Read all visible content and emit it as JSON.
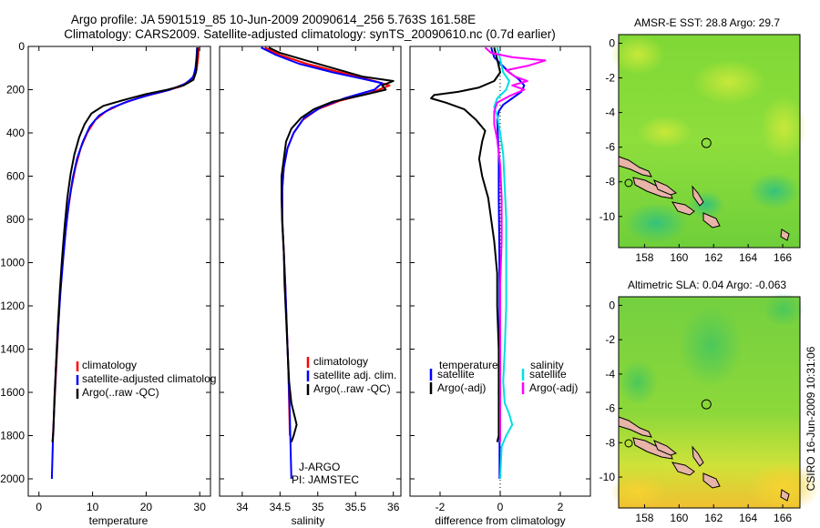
{
  "title": {
    "line1": "Argo profile: JA 5901519_85 10-Jun-2009 20090614_256 5.763S 161.58E",
    "line2": "Climatology: CARS2009. Satellite-adjusted climatology: synTS_20090610.nc (0.7d earlier)"
  },
  "side_text": "CSIRO 16-Jun-2009 10:31:06",
  "colors": {
    "climatology": "#ff0000",
    "satellite": "#0000ff",
    "argo": "#000000",
    "salinity_sat": "#00e0e0",
    "salinity_argo": "#ff00ff",
    "map_land": "#e8b4a8",
    "marker": "#000000"
  },
  "chart_data": [
    {
      "id": "temperature-profile",
      "type": "line",
      "xlabel": "temperature",
      "ylabel": "",
      "xlim": [
        -2,
        32
      ],
      "ylim": [
        2080,
        0
      ],
      "y_reversed": true,
      "xticks": [
        0,
        10,
        20,
        30
      ],
      "yticks": [
        0,
        200,
        400,
        600,
        800,
        1000,
        1200,
        1400,
        1600,
        1800,
        2000
      ],
      "legend_labels": [
        "climatology",
        "satellite-adjusted climatolog",
        "Argo(..raw -QC)"
      ],
      "legend_position": "lower-right",
      "series": [
        {
          "name": "climatology",
          "color": "#ff0000",
          "points": [
            [
              29.8,
              5
            ],
            [
              29.7,
              50
            ],
            [
              29.4,
              110
            ],
            [
              28.5,
              150
            ],
            [
              26.5,
              185
            ],
            [
              23,
              210
            ],
            [
              19,
              235
            ],
            [
              15.5,
              265
            ],
            [
              12.5,
              300
            ],
            [
              10.5,
              340
            ],
            [
              9,
              400
            ],
            [
              7.8,
              470
            ],
            [
              6.8,
              560
            ],
            [
              6,
              660
            ],
            [
              5.3,
              780
            ],
            [
              4.7,
              920
            ],
            [
              4.2,
              1060
            ],
            [
              3.8,
              1200
            ],
            [
              3.5,
              1350
            ],
            [
              3.2,
              1500
            ],
            [
              2.9,
              1650
            ],
            [
              2.6,
              1800
            ]
          ]
        },
        {
          "name": "satellite-adjusted climatolog",
          "color": "#0000ff",
          "points": [
            [
              29.5,
              5
            ],
            [
              29.4,
              50
            ],
            [
              29.2,
              100
            ],
            [
              28.8,
              140
            ],
            [
              27.5,
              170
            ],
            [
              24.5,
              200
            ],
            [
              20.5,
              225
            ],
            [
              16.5,
              255
            ],
            [
              13.5,
              285
            ],
            [
              11.2,
              320
            ],
            [
              9.5,
              370
            ],
            [
              8.2,
              440
            ],
            [
              7.1,
              520
            ],
            [
              6.3,
              610
            ],
            [
              5.6,
              720
            ],
            [
              5,
              850
            ],
            [
              4.5,
              990
            ],
            [
              4,
              1140
            ],
            [
              3.6,
              1300
            ],
            [
              3.2,
              1470
            ],
            [
              2.9,
              1640
            ],
            [
              2.6,
              1820
            ],
            [
              2.4,
              2000
            ]
          ]
        },
        {
          "name": "Argo(..raw -QC)",
          "color": "#000000",
          "points": [
            [
              29.6,
              5
            ],
            [
              29.5,
              50
            ],
            [
              29.3,
              120
            ],
            [
              28.8,
              155
            ],
            [
              27,
              180
            ],
            [
              24,
              200
            ],
            [
              20,
              220
            ],
            [
              15.5,
              250
            ],
            [
              12,
              275
            ],
            [
              9.8,
              310
            ],
            [
              8.5,
              360
            ],
            [
              7.5,
              420
            ],
            [
              6.6,
              500
            ],
            [
              5.9,
              590
            ],
            [
              5.3,
              700
            ],
            [
              4.8,
              830
            ],
            [
              4.3,
              980
            ],
            [
              3.9,
              1130
            ],
            [
              3.5,
              1300
            ],
            [
              3.2,
              1460
            ],
            [
              2.9,
              1620
            ],
            [
              2.7,
              1780
            ],
            [
              2.5,
              1830
            ]
          ]
        }
      ]
    },
    {
      "id": "salinity-profile",
      "type": "line",
      "xlabel": "salinity",
      "ylabel": "",
      "xlim": [
        33.7,
        36.1
      ],
      "ylim": [
        2080,
        0
      ],
      "y_reversed": true,
      "xticks": [
        34,
        34.5,
        35,
        35.5,
        36
      ],
      "legend_labels": [
        "climatology",
        "satellite adj. clim.",
        "Argo(..raw -QC)"
      ],
      "legend_position": "lower-right",
      "annotations": [
        "J-ARGO",
        "PI: JAMSTEC"
      ],
      "series": [
        {
          "name": "climatology",
          "color": "#ff0000",
          "points": [
            [
              34.3,
              5
            ],
            [
              34.5,
              40
            ],
            [
              34.85,
              80
            ],
            [
              35.3,
              120
            ],
            [
              35.75,
              160
            ],
            [
              35.95,
              180
            ],
            [
              35.7,
              215
            ],
            [
              35.3,
              250
            ],
            [
              35,
              290
            ],
            [
              34.8,
              340
            ],
            [
              34.68,
              400
            ],
            [
              34.6,
              470
            ],
            [
              34.55,
              560
            ],
            [
              34.53,
              660
            ],
            [
              34.53,
              800
            ],
            [
              34.55,
              950
            ],
            [
              34.57,
              1100
            ],
            [
              34.59,
              1300
            ],
            [
              34.61,
              1500
            ],
            [
              34.62,
              1650
            ],
            [
              34.63,
              1800
            ]
          ]
        },
        {
          "name": "satellite adj. clim.",
          "color": "#0000ff",
          "points": [
            [
              34.25,
              5
            ],
            [
              34.45,
              40
            ],
            [
              34.75,
              80
            ],
            [
              35.2,
              120
            ],
            [
              35.6,
              150
            ],
            [
              35.85,
              170
            ],
            [
              35.75,
              200
            ],
            [
              35.35,
              240
            ],
            [
              35.05,
              280
            ],
            [
              34.82,
              330
            ],
            [
              34.68,
              400
            ],
            [
              34.6,
              470
            ],
            [
              34.55,
              560
            ],
            [
              34.53,
              660
            ],
            [
              34.53,
              800
            ],
            [
              34.55,
              950
            ],
            [
              34.57,
              1100
            ],
            [
              34.59,
              1300
            ],
            [
              34.61,
              1500
            ],
            [
              34.63,
              1700
            ],
            [
              34.64,
              1850
            ],
            [
              34.65,
              2000
            ]
          ]
        },
        {
          "name": "Argo(..raw -QC)",
          "color": "#000000",
          "points": [
            [
              34.35,
              5
            ],
            [
              34.5,
              30
            ],
            [
              34.8,
              60
            ],
            [
              35.2,
              100
            ],
            [
              35.6,
              140
            ],
            [
              36,
              160
            ],
            [
              35.85,
              180
            ],
            [
              35.9,
              200
            ],
            [
              35.6,
              225
            ],
            [
              35.2,
              255
            ],
            [
              34.95,
              290
            ],
            [
              34.78,
              330
            ],
            [
              34.65,
              380
            ],
            [
              34.58,
              440
            ],
            [
              34.55,
              520
            ],
            [
              34.52,
              600
            ],
            [
              34.52,
              700
            ],
            [
              34.53,
              820
            ],
            [
              34.55,
              950
            ],
            [
              34.56,
              1100
            ],
            [
              34.58,
              1250
            ],
            [
              34.6,
              1400
            ],
            [
              34.62,
              1550
            ],
            [
              34.65,
              1650
            ],
            [
              34.7,
              1720
            ],
            [
              34.72,
              1750
            ],
            [
              34.68,
              1800
            ],
            [
              34.65,
              1830
            ]
          ]
        }
      ]
    },
    {
      "id": "difference-profile",
      "type": "line",
      "xlabel": "difference from climatology",
      "ylabel": "",
      "xlim": [
        -3,
        3
      ],
      "ylim": [
        2080,
        0
      ],
      "y_reversed": true,
      "xticks": [
        -2,
        0,
        2
      ],
      "legend_headers": [
        "temperature",
        "salinity"
      ],
      "legend_labels": [
        "satellite",
        "Argo(-adj)",
        "satellite",
        "Argo(-adj)"
      ],
      "legend_position": "lower-center",
      "series": [
        {
          "name": "satellite",
          "group": "temperature",
          "color": "#0000ff",
          "points": [
            [
              -0.3,
              5
            ],
            [
              -0.2,
              50
            ],
            [
              0.3,
              120
            ],
            [
              0.6,
              150
            ],
            [
              0.8,
              180
            ],
            [
              0.7,
              210
            ],
            [
              0.4,
              240
            ],
            [
              0.1,
              270
            ],
            [
              -0.05,
              300
            ],
            [
              -0.1,
              340
            ],
            [
              -0.08,
              400
            ],
            [
              -0.05,
              500
            ],
            [
              -0.05,
              700
            ],
            [
              -0.03,
              900
            ],
            [
              -0.02,
              1100
            ],
            [
              -0.02,
              1300
            ],
            [
              -0.03,
              1500
            ],
            [
              -0.05,
              1600
            ],
            [
              -0.03,
              1700
            ],
            [
              -0.02,
              1800
            ],
            [
              -0.02,
              2000
            ]
          ]
        },
        {
          "name": "Argo(-adj)",
          "group": "temperature",
          "color": "#000000",
          "points": [
            [
              -0.2,
              5
            ],
            [
              -0.1,
              60
            ],
            [
              0,
              120
            ],
            [
              -0.2,
              160
            ],
            [
              -0.7,
              190
            ],
            [
              -1.4,
              210
            ],
            [
              -2.2,
              225
            ],
            [
              -2.3,
              240
            ],
            [
              -1.8,
              260
            ],
            [
              -1.2,
              290
            ],
            [
              -0.8,
              340
            ],
            [
              -0.5,
              390
            ],
            [
              -0.6,
              440
            ],
            [
              -0.7,
              520
            ],
            [
              -0.6,
              600
            ],
            [
              -0.4,
              700
            ],
            [
              -0.3,
              800
            ],
            [
              -0.2,
              900
            ],
            [
              -0.1,
              1050
            ],
            [
              -0.1,
              1200
            ],
            [
              -0.05,
              1400
            ],
            [
              -0.05,
              1600
            ],
            [
              -0.05,
              1800
            ],
            [
              -0.1,
              1830
            ]
          ]
        },
        {
          "name": "satellite",
          "group": "salinity",
          "color": "#00e0e0",
          "points": [
            [
              -0.1,
              5
            ],
            [
              0,
              60
            ],
            [
              0.1,
              120
            ],
            [
              0.3,
              160
            ],
            [
              0.2,
              200
            ],
            [
              -0.1,
              240
            ],
            [
              -0.2,
              280
            ],
            [
              -0.1,
              320
            ],
            [
              0,
              400
            ],
            [
              0.1,
              500
            ],
            [
              0.15,
              650
            ],
            [
              0.2,
              800
            ],
            [
              0.2,
              1000
            ],
            [
              0.2,
              1200
            ],
            [
              0.15,
              1400
            ],
            [
              0.1,
              1550
            ],
            [
              0.15,
              1650
            ],
            [
              0.3,
              1700
            ],
            [
              0.4,
              1750
            ],
            [
              0.2,
              1800
            ],
            [
              0.05,
              1850
            ],
            [
              0,
              2000
            ]
          ]
        },
        {
          "name": "Argo(-adj)",
          "group": "salinity",
          "color": "#ff00ff",
          "points": [
            [
              -0.5,
              5
            ],
            [
              -0.3,
              30
            ],
            [
              0.4,
              50
            ],
            [
              1.5,
              65
            ],
            [
              0.9,
              90
            ],
            [
              0.2,
              110
            ],
            [
              0.5,
              140
            ],
            [
              0.9,
              160
            ],
            [
              0.4,
              180
            ],
            [
              0.8,
              200
            ],
            [
              0.3,
              230
            ],
            [
              -0.1,
              260
            ],
            [
              -0.2,
              300
            ],
            [
              -0.2,
              360
            ],
            [
              -0.1,
              430
            ],
            [
              0,
              550
            ],
            [
              0.05,
              700
            ],
            [
              0.05,
              900
            ],
            [
              0,
              1100
            ],
            [
              0,
              1300
            ],
            [
              0,
              1500
            ],
            [
              0,
              1700
            ],
            [
              0,
              1830
            ]
          ]
        }
      ]
    },
    {
      "id": "amsr-e-sst-map",
      "type": "heatmap",
      "title": "AMSR-E SST: 28.8 Argo: 29.7",
      "xlim": [
        156.5,
        167
      ],
      "ylim": [
        -11.8,
        0.5
      ],
      "xticks": [
        158,
        160,
        162,
        164,
        166
      ],
      "yticks": [
        0,
        -2,
        -4,
        -6,
        -8,
        -10
      ],
      "marker": {
        "x": 161.58,
        "y": -5.763
      }
    },
    {
      "id": "altimetric-sla-map",
      "type": "heatmap",
      "title": "Altimetric SLA: 0.04 Argo: -0.063",
      "xlim": [
        156.5,
        167
      ],
      "ylim": [
        -11.8,
        0.5
      ],
      "xticks": [
        158,
        160,
        162,
        164,
        166
      ],
      "yticks": [
        0,
        -2,
        -4,
        -6,
        -8,
        -10
      ],
      "marker": {
        "x": 161.58,
        "y": -5.763
      }
    }
  ]
}
